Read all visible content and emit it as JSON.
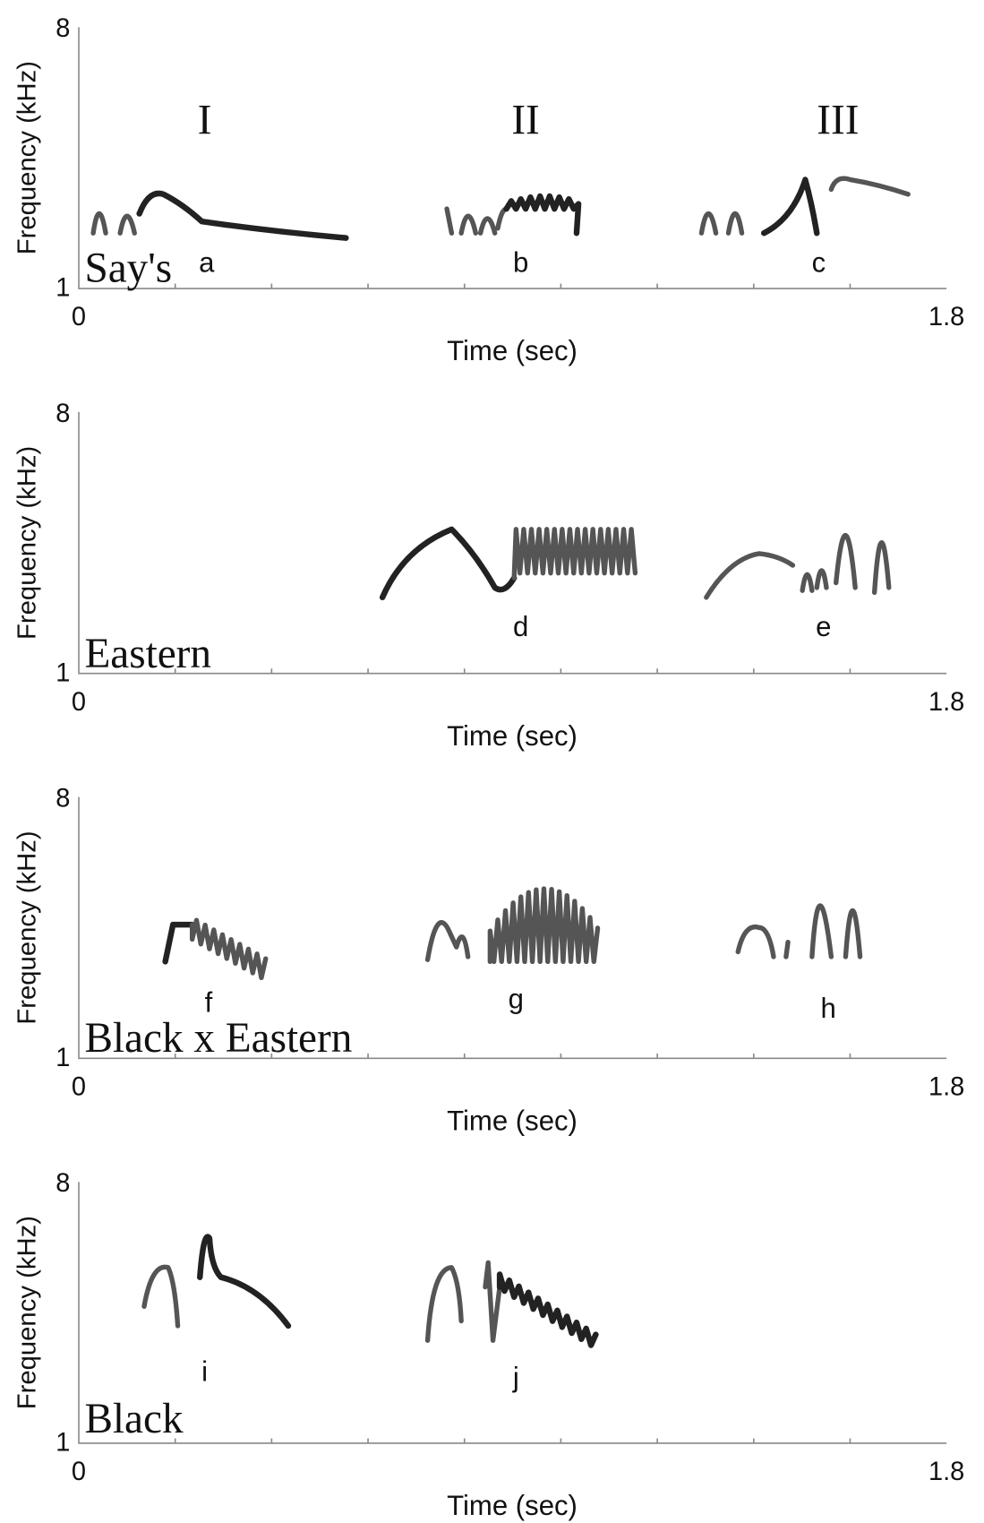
{
  "phrase_labels": [
    "I",
    "II",
    "III"
  ],
  "panels": [
    {
      "species": "Say's",
      "y_label": "Frequency (kHz)",
      "x_label": "Time (sec)",
      "y_ticks": [
        "1",
        "8"
      ],
      "x_ticks": [
        "0",
        "1.8"
      ],
      "syllables": [
        "a",
        "b",
        "c"
      ]
    },
    {
      "species": "Eastern",
      "y_label": "Frequency (kHz)",
      "x_label": "Time (sec)",
      "y_ticks": [
        "1",
        "8"
      ],
      "x_ticks": [
        "0",
        "1.8"
      ],
      "syllables": [
        "d",
        "e"
      ]
    },
    {
      "species": "Black x Eastern",
      "y_label": "Frequency (kHz)",
      "x_label": "Time (sec)",
      "y_ticks": [
        "1",
        "8"
      ],
      "x_ticks": [
        "0",
        "1.8"
      ],
      "syllables": [
        "f",
        "g",
        "h"
      ]
    },
    {
      "species": "Black",
      "y_label": "Frequency (kHz)",
      "x_label": "Time (sec)",
      "y_ticks": [
        "1",
        "8"
      ],
      "x_ticks": [
        "0",
        "1.8"
      ],
      "syllables": [
        "i",
        "j"
      ]
    }
  ]
}
